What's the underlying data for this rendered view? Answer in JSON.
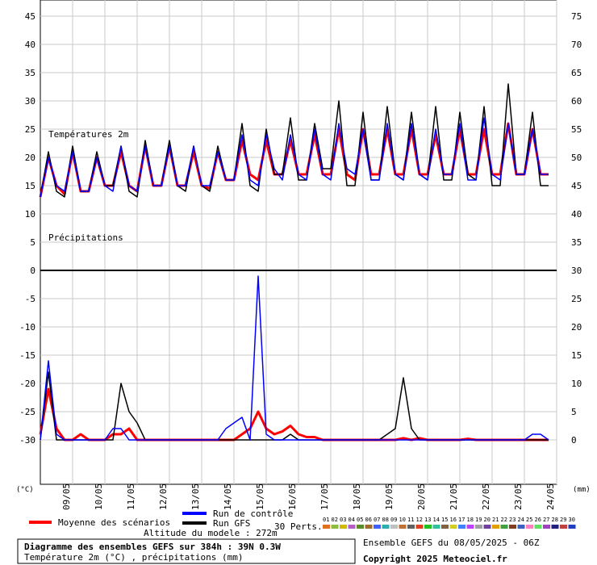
{
  "chart_data": {
    "type": "line",
    "panels": [
      {
        "label": "Températures 2m",
        "ylim": [
          10,
          45
        ],
        "series": [
          {
            "name": "Moyenne des scénarios",
            "color": "#ff0000",
            "x": [
              0,
              0.25,
              0.5,
              0.75,
              1,
              1.25,
              1.5,
              1.75,
              2,
              2.25,
              2.5,
              2.75,
              3,
              3.25,
              3.5,
              3.75,
              4,
              4.25,
              4.5,
              4.75,
              5,
              5.25,
              5.5,
              5.75,
              6,
              6.25,
              6.5,
              6.75,
              7,
              7.25,
              7.5,
              7.75,
              8,
              8.25,
              8.5,
              8.75,
              9,
              9.25,
              9.5,
              9.75,
              10,
              10.25,
              10.5,
              10.75,
              11,
              11.25,
              11.5,
              11.75,
              12,
              12.25,
              12.5,
              12.75,
              13,
              13.25,
              13.5,
              13.75,
              14,
              14.25,
              14.5,
              14.75,
              15,
              15.25,
              15.5,
              15.75
            ],
            "values": [
              13,
              20,
              15,
              13.5,
              21,
              14,
              14,
              20,
              15,
              15,
              21,
              15,
              14,
              22,
              15,
              15,
              22,
              15,
              15,
              21,
              15,
              14.5,
              21,
              16,
              16,
              23,
              17,
              16,
              23,
              17,
              17,
              23,
              17,
              17,
              24,
              17,
              17,
              25,
              17,
              16,
              25,
              17,
              17,
              25,
              17,
              17,
              25,
              17,
              17,
              24,
              17,
              17,
              25,
              17,
              17,
              25,
              17,
              17,
              26,
              17,
              17,
              25,
              17,
              17
            ]
          },
          {
            "name": "Run GFS",
            "color": "#000000",
            "x": [
              0,
              0.25,
              0.5,
              0.75,
              1,
              1.25,
              1.5,
              1.75,
              2,
              2.25,
              2.5,
              2.75,
              3,
              3.25,
              3.5,
              3.75,
              4,
              4.25,
              4.5,
              4.75,
              5,
              5.25,
              5.5,
              5.75,
              6,
              6.25,
              6.5,
              6.75,
              7,
              7.25,
              7.5,
              7.75,
              8,
              8.25,
              8.5,
              8.75,
              9,
              9.25,
              9.5,
              9.75,
              10,
              10.25,
              10.5,
              10.75,
              11,
              11.25,
              11.5,
              11.75,
              12,
              12.25,
              12.5,
              12.75,
              13,
              13.25,
              13.5,
              13.75,
              14,
              14.25,
              14.5,
              14.75,
              15,
              15.25,
              15.5,
              15.75
            ],
            "values": [
              13,
              21,
              14,
              13,
              22,
              14,
              14,
              21,
              15,
              15,
              22,
              14,
              13,
              23,
              15,
              15,
              23,
              15,
              14,
              22,
              15,
              14,
              22,
              16,
              16,
              26,
              15,
              14,
              25,
              17,
              17,
              27,
              16,
              16,
              26,
              18,
              18,
              30,
              15,
              15,
              28,
              16,
              16,
              29,
              17,
              16,
              28,
              17,
              16,
              29,
              16,
              16,
              28,
              17,
              16,
              29,
              15,
              15,
              33,
              17,
              17,
              28,
              15,
              15
            ]
          },
          {
            "name": "Run de contrôle",
            "color": "#0000ff",
            "x": [
              0,
              0.25,
              0.5,
              0.75,
              1,
              1.25,
              1.5,
              1.75,
              2,
              2.25,
              2.5,
              2.75,
              3,
              3.25,
              3.5,
              3.75,
              4,
              4.25,
              4.5,
              4.75,
              5,
              5.25,
              5.5,
              5.75,
              6,
              6.25,
              6.5,
              6.75,
              7,
              7.25,
              7.5,
              7.75,
              8,
              8.25,
              8.5,
              8.75,
              9,
              9.25,
              9.5,
              9.75,
              10,
              10.25,
              10.5,
              10.75,
              11,
              11.25,
              11.5,
              11.75,
              12,
              12.25,
              12.5,
              12.75,
              13,
              13.25,
              13.5,
              13.75,
              14,
              14.25,
              14.5,
              14.75,
              15,
              15.25,
              15.5,
              15.75
            ],
            "values": [
              13,
              20,
              15,
              14,
              21,
              14,
              14,
              20,
              15,
              14,
              22,
              15,
              14,
              22,
              15,
              15,
              22,
              15,
              15,
              22,
              15,
              15,
              21,
              16,
              16,
              24,
              16,
              15,
              24,
              18,
              16,
              24,
              17,
              16,
              25,
              17,
              16,
              26,
              18,
              17,
              25,
              16,
              16,
              26,
              17,
              16,
              26,
              17,
              16,
              25,
              17,
              17,
              26,
              16,
              16,
              27,
              17,
              16,
              26,
              17,
              17,
              25,
              17,
              17
            ]
          }
        ]
      },
      {
        "label": "Précipitations",
        "ylim": [
          0,
          30
        ],
        "series": [
          {
            "name": "Moyenne des scénarios",
            "color": "#ff0000",
            "x": [
              0,
              0.25,
              0.5,
              0.75,
              1,
              1.25,
              1.5,
              1.75,
              2,
              2.25,
              2.5,
              2.75,
              3,
              3.25,
              3.5,
              3.75,
              4,
              4.25,
              4.5,
              4.75,
              5,
              5.25,
              5.5,
              5.75,
              6,
              6.25,
              6.5,
              6.75,
              7,
              7.25,
              7.5,
              7.75,
              8,
              8.25,
              8.5,
              8.75,
              9,
              9.25,
              9.5,
              9.75,
              10,
              10.25,
              10.5,
              10.75,
              11,
              11.25,
              11.5,
              11.75,
              12,
              12.25,
              12.5,
              12.75,
              13,
              13.25,
              13.5,
              13.75,
              14,
              14.25,
              14.5,
              14.75,
              15,
              15.25,
              15.5,
              15.75
            ],
            "values": [
              1,
              9,
              2,
              0,
              0,
              1,
              0,
              0,
              0,
              1,
              1,
              2,
              0,
              0,
              0,
              0,
              0,
              0,
              0,
              0,
              0,
              0,
              0,
              0,
              0,
              1,
              2,
              5,
              2,
              1,
              1.5,
              2.5,
              1,
              0.5,
              0.5,
              0,
              0,
              0,
              0,
              0,
              0,
              0,
              0,
              0,
              0,
              0.3,
              0,
              0.3,
              0,
              0,
              0,
              0,
              0,
              0.2,
              0,
              0,
              0,
              0,
              0,
              0,
              0,
              0,
              0,
              0
            ]
          },
          {
            "name": "Run GFS",
            "color": "#000000",
            "x": [
              0,
              0.25,
              0.5,
              0.75,
              1,
              1.25,
              1.5,
              1.75,
              2,
              2.25,
              2.5,
              2.75,
              3,
              3.25,
              3.5,
              3.75,
              4,
              4.25,
              4.5,
              4.75,
              5,
              5.25,
              5.5,
              5.75,
              6,
              6.25,
              6.5,
              6.75,
              7,
              7.25,
              7.5,
              7.75,
              8,
              8.25,
              8.5,
              8.75,
              9,
              9.25,
              9.5,
              9.75,
              10,
              10.25,
              10.5,
              10.75,
              11,
              11.25,
              11.5,
              11.75,
              12,
              12.25,
              12.5,
              12.75,
              13,
              13.25,
              13.5,
              13.75,
              14,
              14.25,
              14.5,
              14.75,
              15,
              15.25,
              15.5,
              15.75
            ],
            "values": [
              0,
              12,
              0,
              0,
              0,
              0,
              0,
              0,
              0,
              0,
              10,
              5,
              3,
              0,
              0,
              0,
              0,
              0,
              0,
              0,
              0,
              0,
              0,
              0,
              0,
              0,
              0,
              0,
              0,
              0,
              0,
              1,
              0,
              0,
              0,
              0,
              0,
              0,
              0,
              0,
              0,
              0,
              0,
              1,
              2,
              11,
              2,
              0,
              0,
              0,
              0,
              0,
              0,
              0,
              0,
              0,
              0,
              0,
              0,
              0,
              0,
              0,
              0,
              0
            ]
          },
          {
            "name": "Run de contrôle",
            "color": "#0000ff",
            "x": [
              0,
              0.25,
              0.5,
              0.75,
              1,
              1.25,
              1.5,
              1.75,
              2,
              2.25,
              2.5,
              2.75,
              3,
              3.25,
              3.5,
              3.75,
              4,
              4.25,
              4.5,
              4.75,
              5,
              5.25,
              5.5,
              5.75,
              6,
              6.25,
              6.5,
              6.75,
              7,
              7.25,
              7.5,
              7.75,
              8,
              8.25,
              8.5,
              8.75,
              9,
              9.25,
              9.5,
              9.75,
              10,
              10.25,
              10.5,
              10.75,
              11,
              11.25,
              11.5,
              11.75,
              12,
              12.25,
              12.5,
              12.75,
              13,
              13.25,
              13.5,
              13.75,
              14,
              14.25,
              14.5,
              14.75,
              15,
              15.25,
              15.5,
              15.75
            ],
            "values": [
              0,
              14,
              1,
              0,
              0,
              0,
              0,
              0,
              0,
              2,
              2,
              0,
              0,
              0,
              0,
              0,
              0,
              0,
              0,
              0,
              0,
              0,
              0,
              2,
              3,
              4,
              0,
              29,
              1,
              0,
              0,
              0,
              0,
              0,
              0,
              0,
              0,
              0,
              0,
              0,
              0,
              0,
              0,
              0,
              0,
              0,
              0,
              0,
              0,
              0,
              0,
              0,
              0,
              0,
              0,
              0,
              0,
              0,
              0,
              0,
              0,
              1,
              1,
              0
            ]
          }
        ]
      }
    ],
    "x_start_date": "08/05/2025 06Z",
    "x_tick_labels": [
      "09/05",
      "10/05",
      "11/05",
      "12/05",
      "13/05",
      "14/05",
      "15/05",
      "16/05",
      "17/05",
      "18/05",
      "19/05",
      "20/05",
      "21/05",
      "22/05",
      "23/05",
      "24/05"
    ],
    "y_left_ticks": [
      "45",
      "40",
      "35",
      "30",
      "25",
      "20",
      "15",
      "10",
      "5",
      "0",
      "-5",
      "-10",
      "-15",
      "-20",
      "-25",
      "-30"
    ],
    "y_right_ticks": [
      "75",
      "70",
      "65",
      "60",
      "55",
      "50",
      "45",
      "40",
      "35",
      "30",
      "25",
      "20",
      "15",
      "10",
      "5",
      "0"
    ],
    "y_left_unit": "(°C)",
    "y_right_unit": "(mm)",
    "grid": true
  },
  "legend": {
    "mean_label": "Moyenne des scénarios",
    "control_label": "Run de contrôle",
    "gfs_label": "Run GFS",
    "perts_label": "30 Perts.",
    "altitude_label": "Altitude du modele : 272m",
    "pert_numbers": [
      "01",
      "02",
      "03",
      "04",
      "05",
      "06",
      "07",
      "08",
      "09",
      "10",
      "11",
      "12",
      "13",
      "14",
      "15",
      "16",
      "17",
      "18",
      "19",
      "20",
      "21",
      "22",
      "23",
      "24",
      "25",
      "26",
      "27",
      "28",
      "29",
      "30"
    ],
    "pert_colors": [
      "#e07020",
      "#8fbc3f",
      "#d4b800",
      "#b85cc8",
      "#5a8a2a",
      "#a06a30",
      "#4060ff",
      "#2ab0b0",
      "#c0c0c0",
      "#c07030",
      "#606060",
      "#e04020",
      "#20c020",
      "#30c0a0",
      "#806040",
      "#d0d020",
      "#4080ff",
      "#c040ff",
      "#a0a0a0",
      "#7040a0",
      "#e0a000",
      "#40a040",
      "#804020",
      "#4060c0",
      "#ff80c0",
      "#60e060",
      "#a040c0",
      "#202080",
      "#c04040",
      "#2040c0"
    ]
  },
  "footer": {
    "title": "Diagramme des ensembles GEFS sur 384h : 39N 0.3W",
    "subtitle": "Température 2m (°C) , précipitations (mm)",
    "run_info": "Ensemble GEFS du 08/05/2025 - 06Z",
    "copyright": "Copyright 2025 Meteociel.fr"
  }
}
